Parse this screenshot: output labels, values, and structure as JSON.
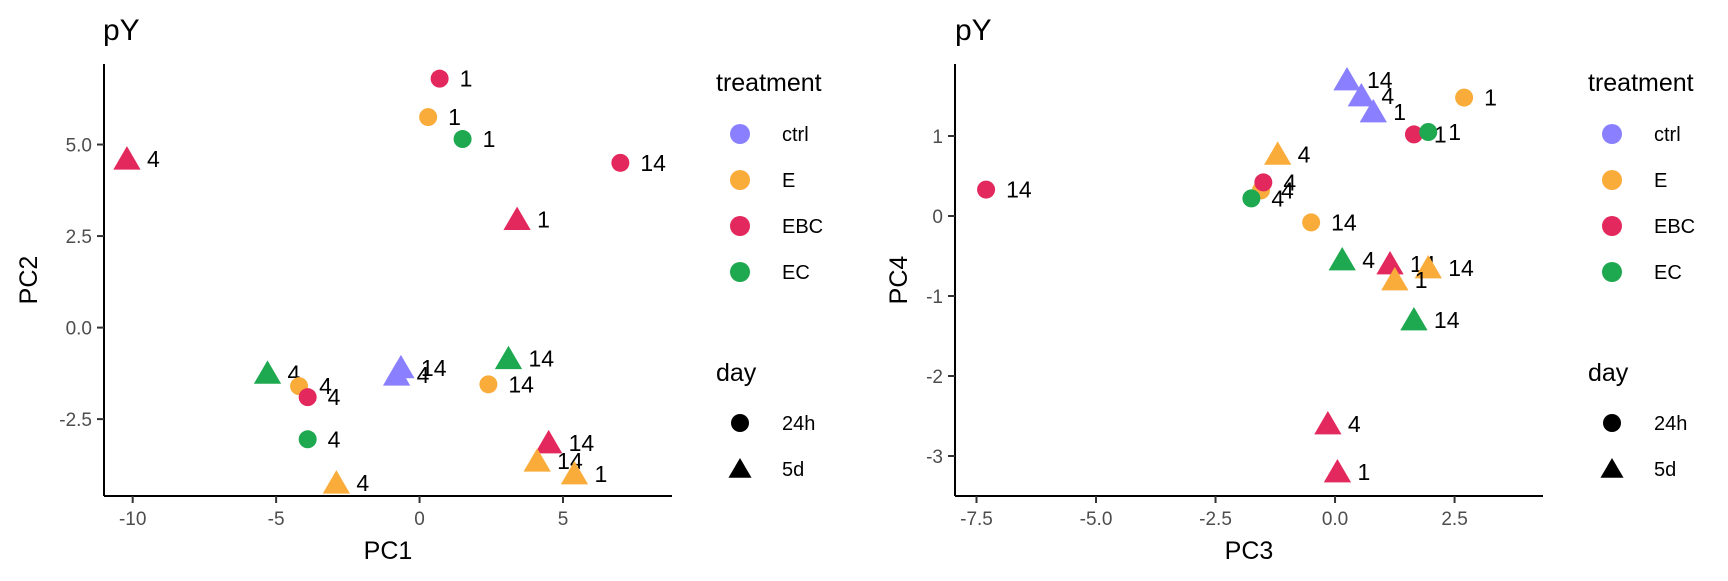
{
  "chart_data": [
    {
      "type": "scatter",
      "title": "pY",
      "xlabel": "PC1",
      "ylabel": "PC2",
      "xlim": [
        -11.0,
        8.8
      ],
      "ylim": [
        -4.6,
        7.2
      ],
      "xticks": [
        -10,
        -5,
        0,
        5
      ],
      "xtick_labels": [
        "-10",
        "-5",
        "0",
        "5"
      ],
      "yticks": [
        -2.5,
        0.0,
        2.5,
        5.0
      ],
      "ytick_labels": [
        "-2.5",
        "0.0",
        "2.5",
        "5.0"
      ],
      "grid": false,
      "points": [
        {
          "x": 0.7,
          "y": 6.8,
          "treatment": "EBC",
          "day": "24h",
          "label": "1"
        },
        {
          "x": 0.3,
          "y": 5.75,
          "treatment": "E",
          "day": "24h",
          "label": "1"
        },
        {
          "x": 1.5,
          "y": 5.15,
          "treatment": "EC",
          "day": "24h",
          "label": "1"
        },
        {
          "x": -10.2,
          "y": 4.6,
          "treatment": "EBC",
          "day": "5d",
          "label": "4"
        },
        {
          "x": 7.0,
          "y": 4.5,
          "treatment": "EBC",
          "day": "24h",
          "label": "14"
        },
        {
          "x": 3.4,
          "y": 2.95,
          "treatment": "EBC",
          "day": "5d",
          "label": "1"
        },
        {
          "x": -5.3,
          "y": -1.25,
          "treatment": "EC",
          "day": "5d",
          "label": "4"
        },
        {
          "x": -0.65,
          "y": -1.1,
          "treatment": "ctrl",
          "day": "5d",
          "label": "14"
        },
        {
          "x": -0.8,
          "y": -1.3,
          "treatment": "ctrl",
          "day": "5d",
          "label": "4"
        },
        {
          "x": 3.1,
          "y": -0.85,
          "treatment": "EC",
          "day": "5d",
          "label": "14"
        },
        {
          "x": -4.2,
          "y": -1.6,
          "treatment": "E",
          "day": "24h",
          "label": "4"
        },
        {
          "x": -3.9,
          "y": -1.9,
          "treatment": "EBC",
          "day": "24h",
          "label": "4"
        },
        {
          "x": 2.4,
          "y": -1.55,
          "treatment": "E",
          "day": "24h",
          "label": "14"
        },
        {
          "x": -3.9,
          "y": -3.05,
          "treatment": "EC",
          "day": "24h",
          "label": "4"
        },
        {
          "x": 4.5,
          "y": -3.15,
          "treatment": "EBC",
          "day": "5d",
          "label": "14"
        },
        {
          "x": 4.1,
          "y": -3.65,
          "treatment": "E",
          "day": "5d",
          "label": "14"
        },
        {
          "x": 5.4,
          "y": -4.0,
          "treatment": "E",
          "day": "5d",
          "label": "1"
        },
        {
          "x": -2.9,
          "y": -4.25,
          "treatment": "E",
          "day": "5d",
          "label": "4"
        }
      ]
    },
    {
      "type": "scatter",
      "title": "pY",
      "xlabel": "PC3",
      "ylabel": "PC4",
      "xlim": [
        -7.95,
        4.35
      ],
      "ylim": [
        -3.5,
        1.9
      ],
      "xticks": [
        -7.5,
        -5.0,
        -2.5,
        0.0,
        2.5
      ],
      "xtick_labels": [
        "-7.5",
        "-5.0",
        "-2.5",
        "0.0",
        "2.5"
      ],
      "yticks": [
        -3,
        -2,
        -1,
        0,
        1
      ],
      "ytick_labels": [
        "-3",
        "-2",
        "-1",
        "0",
        "1"
      ],
      "grid": false,
      "points": [
        {
          "x": 0.25,
          "y": 1.7,
          "treatment": "ctrl",
          "day": "5d",
          "label": "14"
        },
        {
          "x": 0.55,
          "y": 1.5,
          "treatment": "ctrl",
          "day": "5d",
          "label": "4"
        },
        {
          "x": 0.8,
          "y": 1.3,
          "treatment": "ctrl",
          "day": "5d",
          "label": "1"
        },
        {
          "x": 2.7,
          "y": 1.48,
          "treatment": "E",
          "day": "24h",
          "label": "1"
        },
        {
          "x": 1.65,
          "y": 1.02,
          "treatment": "EBC",
          "day": "24h",
          "label": "1"
        },
        {
          "x": 1.95,
          "y": 1.05,
          "treatment": "EC",
          "day": "24h",
          "label": "1"
        },
        {
          "x": -1.2,
          "y": 0.77,
          "treatment": "E",
          "day": "5d",
          "label": "4"
        },
        {
          "x": -7.3,
          "y": 0.33,
          "treatment": "EBC",
          "day": "24h",
          "label": "14"
        },
        {
          "x": -1.55,
          "y": 0.32,
          "treatment": "E",
          "day": "24h",
          "label": "4"
        },
        {
          "x": -1.5,
          "y": 0.42,
          "treatment": "EBC",
          "day": "24h",
          "label": "4"
        },
        {
          "x": -1.75,
          "y": 0.22,
          "treatment": "EC",
          "day": "24h",
          "label": "4"
        },
        {
          "x": -0.5,
          "y": -0.08,
          "treatment": "E",
          "day": "24h",
          "label": "14"
        },
        {
          "x": 0.15,
          "y": -0.55,
          "treatment": "EC",
          "day": "5d",
          "label": "4"
        },
        {
          "x": 1.15,
          "y": -0.6,
          "treatment": "EBC",
          "day": "5d",
          "label": "14"
        },
        {
          "x": 1.95,
          "y": -0.65,
          "treatment": "E",
          "day": "5d",
          "label": "14"
        },
        {
          "x": 1.25,
          "y": -0.8,
          "treatment": "E",
          "day": "5d",
          "label": "1"
        },
        {
          "x": 1.65,
          "y": -1.3,
          "treatment": "EC",
          "day": "5d",
          "label": "14"
        },
        {
          "x": -0.15,
          "y": -2.6,
          "treatment": "EBC",
          "day": "5d",
          "label": "4"
        },
        {
          "x": 0.05,
          "y": -3.2,
          "treatment": "EBC",
          "day": "5d",
          "label": "1"
        }
      ]
    }
  ],
  "legend": {
    "color_title": "treatment",
    "shape_title": "day",
    "treatments": [
      {
        "name": "ctrl",
        "color": "#8A80FF"
      },
      {
        "name": "E",
        "color": "#FAAC3B"
      },
      {
        "name": "EBC",
        "color": "#E3285E"
      },
      {
        "name": "EC",
        "color": "#1EA84F"
      }
    ],
    "days": [
      {
        "name": "24h",
        "shape": "circle"
      },
      {
        "name": "5d",
        "shape": "triangle"
      }
    ]
  }
}
